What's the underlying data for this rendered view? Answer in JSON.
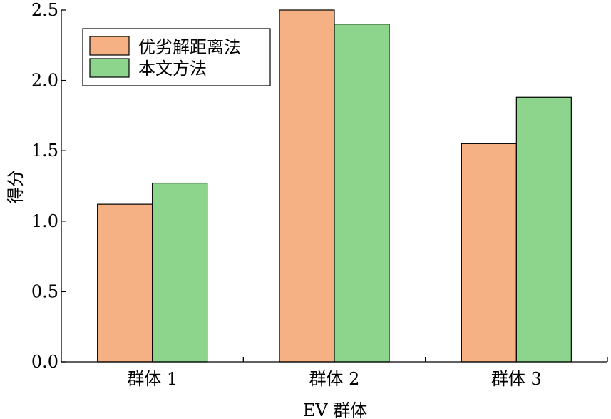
{
  "chart_data": {
    "type": "bar",
    "categories": [
      "群体 1",
      "群体 2",
      "群体 3"
    ],
    "series": [
      {
        "name": "优劣解距离法",
        "values": [
          1.12,
          2.5,
          1.55
        ],
        "color": "#f5b183"
      },
      {
        "name": "本文方法",
        "values": [
          1.27,
          2.4,
          1.88
        ],
        "color": "#8dd58d"
      }
    ],
    "xlabel": "EV 群体",
    "ylabel": "得分",
    "ylim": [
      0,
      2.5
    ],
    "yticks": [
      0.0,
      0.5,
      1.0,
      1.5,
      2.0,
      2.5
    ],
    "ytick_labels": [
      "0.0",
      "0.5",
      "1.0",
      "1.5",
      "2.0",
      "2.5"
    ],
    "grid": false,
    "legend_position": "top-left"
  }
}
